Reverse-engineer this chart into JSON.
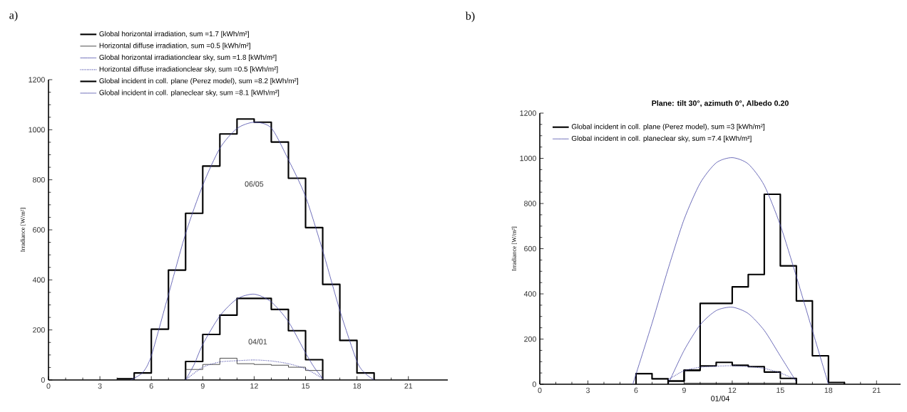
{
  "chart_data": [
    {
      "type": "line",
      "annotations": [
        "a)",
        "06/05",
        "04/01"
      ],
      "ylabel": "Irradiance [W/m²]",
      "xlim": [
        0,
        23.3
      ],
      "ylim": [
        0,
        1200
      ],
      "xticks": [
        0,
        3,
        6,
        9,
        12,
        15,
        18,
        21
      ],
      "yticks": [
        0,
        200,
        400,
        600,
        800,
        1000,
        1200
      ],
      "legend": "top left",
      "series": [
        {
          "name": "Global horizontal irradiation, sum =1.7 [kWh/m²]",
          "type": "step",
          "color": "#000000",
          "x": [
            8,
            8,
            9,
            10,
            11,
            12,
            13,
            14,
            15,
            16
          ],
          "values": [
            0,
            74,
            182,
            259,
            326,
            326,
            282,
            197,
            81,
            0
          ]
        },
        {
          "name": "Horizontal diffuse irradiation, sum =0.5 [kWh/m²]",
          "type": "step",
          "color": "#202020",
          "x": [
            8,
            8,
            9,
            10,
            11,
            12,
            13,
            14,
            15,
            16
          ],
          "values": [
            0,
            42,
            62,
            87,
            65,
            62,
            59,
            51,
            38,
            0
          ]
        },
        {
          "name": "Global horizontal irradiationclear sky, sum =1.8 [kWh/m²]",
          "type": "line",
          "color": "#4a4aa8",
          "x": [
            8,
            8.5,
            9,
            10,
            11,
            12,
            13,
            14,
            15,
            15.5,
            16
          ],
          "values": [
            0,
            62,
            142,
            256,
            324,
            343,
            312,
            233,
            108,
            51,
            6
          ]
        },
        {
          "name": "Horizontal diffuse irradiationclear sky, sum =0.5 [kWh/m²]",
          "type": "line",
          "line_style": "dotted",
          "color": "#4a4aa8",
          "x": [
            8.1,
            9,
            10,
            11,
            12,
            13,
            14,
            15,
            16
          ],
          "values": [
            6,
            51,
            72,
            77,
            80,
            76,
            65,
            45,
            6
          ]
        },
        {
          "name": "Global incident in coll. plane (Perez model), sum =8.2 [kWh/m²]",
          "type": "step",
          "color": "#000000",
          "x": [
            4,
            5,
            6,
            7,
            8,
            9,
            10,
            11,
            12,
            13,
            14,
            15,
            16,
            17,
            18,
            19
          ],
          "values": [
            5,
            28,
            203,
            439,
            666,
            855,
            983,
            1043,
            1030,
            951,
            806,
            609,
            382,
            158,
            28,
            0
          ]
        },
        {
          "name": "Global incident in coll. planeclear sky, sum =8.1 [kWh/m²]",
          "type": "line",
          "color": "#4a4aa8",
          "x": [
            4.8,
            5.5,
            6,
            7,
            8,
            9,
            10,
            11,
            12,
            13,
            14,
            15,
            16,
            17,
            18,
            18.5,
            19
          ],
          "values": [
            0,
            30,
            97,
            341,
            585,
            778,
            926,
            1005,
            1030,
            1007,
            880,
            733,
            517,
            278,
            74,
            25,
            0
          ]
        }
      ]
    },
    {
      "type": "line",
      "title": "Plane: tilt 30°, azimuth 0°, Albedo 0.20",
      "annotations": [
        "b)"
      ],
      "xlabel": "01/04",
      "ylabel": "Irradiance [W/m²]",
      "xlim": [
        0,
        22.5
      ],
      "ylim": [
        0,
        1200
      ],
      "xticks": [
        0,
        3,
        6,
        9,
        12,
        15,
        18,
        21
      ],
      "yticks": [
        0,
        200,
        400,
        600,
        800,
        1000,
        1200
      ],
      "legend": "top left",
      "series": [
        {
          "name": "Global incident in coll. plane (Perez model), sum =3 [kWh/m²]",
          "type": "step",
          "color": "#000000",
          "x": [
            6,
            6,
            7,
            8,
            9,
            10,
            11,
            12,
            13,
            14,
            15,
            16,
            17,
            18,
            19
          ],
          "values": [
            0,
            47,
            24,
            14,
            62,
            358,
            358,
            431,
            486,
            841,
            524,
            369,
            126,
            8,
            0
          ]
        },
        {
          "name": "Global incident in coll. planeclear sky, sum =7.4 [kWh/m²]",
          "type": "line",
          "color": "#4a4aa8",
          "x": [
            5.8,
            7,
            8,
            9,
            10,
            11,
            12,
            13,
            14,
            15,
            16,
            17,
            18
          ],
          "values": [
            0,
            270,
            510,
            730,
            890,
            980,
            1003,
            975,
            880,
            704,
            477,
            238,
            0
          ]
        },
        {
          "type": "line",
          "color": "#4a4aa8",
          "x": [
            8,
            9,
            10,
            11,
            12,
            13,
            14,
            15,
            16
          ],
          "values": [
            0,
            150,
            263,
            326,
            341,
            313,
            238,
            125,
            11
          ]
        },
        {
          "type": "step",
          "color": "#000000",
          "x": [
            8,
            8,
            9,
            10,
            11,
            12,
            13,
            14,
            15,
            16
          ],
          "values": [
            0,
            14,
            62,
            81,
            97,
            84,
            78,
            54,
            26,
            0
          ]
        },
        {
          "type": "line",
          "line_style": "dotted",
          "color": "#4a4aa8",
          "x": [
            8,
            9,
            10,
            11,
            12,
            13,
            14,
            15,
            16
          ],
          "values": [
            20,
            60,
            75,
            80,
            82,
            78,
            70,
            50,
            20
          ]
        },
        {
          "type": "step",
          "color": "#202020",
          "x": [
            9,
            16
          ],
          "values": [
            5,
            5
          ]
        }
      ]
    }
  ]
}
